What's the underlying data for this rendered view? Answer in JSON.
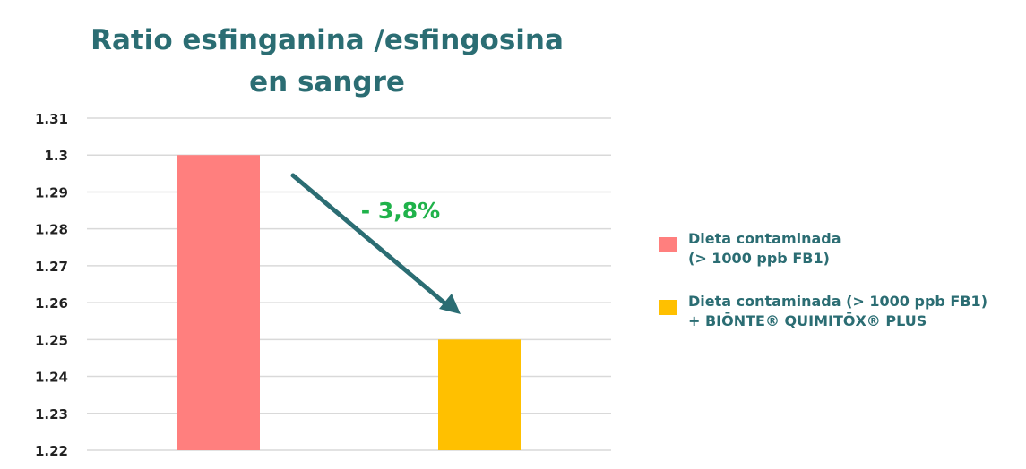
{
  "chart_data": {
    "type": "bar",
    "title_lines": [
      "Ratio esfinganina /esfingosina",
      "en sangre"
    ],
    "categories": [
      "Dieta contaminada (> 1000 ppb FB1)",
      "Dieta contaminada (> 1000 ppb FB1) + BIŌNTE® QUIMITŌX® PLUS"
    ],
    "values": [
      1.3,
      1.25
    ],
    "colors": [
      "#ff7f7e",
      "#ffc000"
    ],
    "ylim": [
      1.22,
      1.31
    ],
    "yticks": [
      "1.31",
      "1.3",
      "1.29",
      "1.28",
      "1.27",
      "1.26",
      "1.25",
      "1.24",
      "1.23",
      "1.22"
    ],
    "ytick_values": [
      1.31,
      1.3,
      1.29,
      1.28,
      1.27,
      1.26,
      1.25,
      1.24,
      1.23,
      1.22
    ],
    "grid": true,
    "legend_position": "right",
    "legend": [
      {
        "lines": [
          "Dieta contaminada",
          "(> 1000 ppb FB1)"
        ],
        "color": "#ff7f7e"
      },
      {
        "lines": [
          "Dieta contaminada (> 1000 ppb FB1)",
          "+ BIŌNTE® QUIMITŌX® PLUS"
        ],
        "color": "#ffc000"
      }
    ],
    "annotation": {
      "text": "- 3,8%",
      "color": "#1fb24a",
      "arrow_color": "#2b6d73"
    }
  }
}
